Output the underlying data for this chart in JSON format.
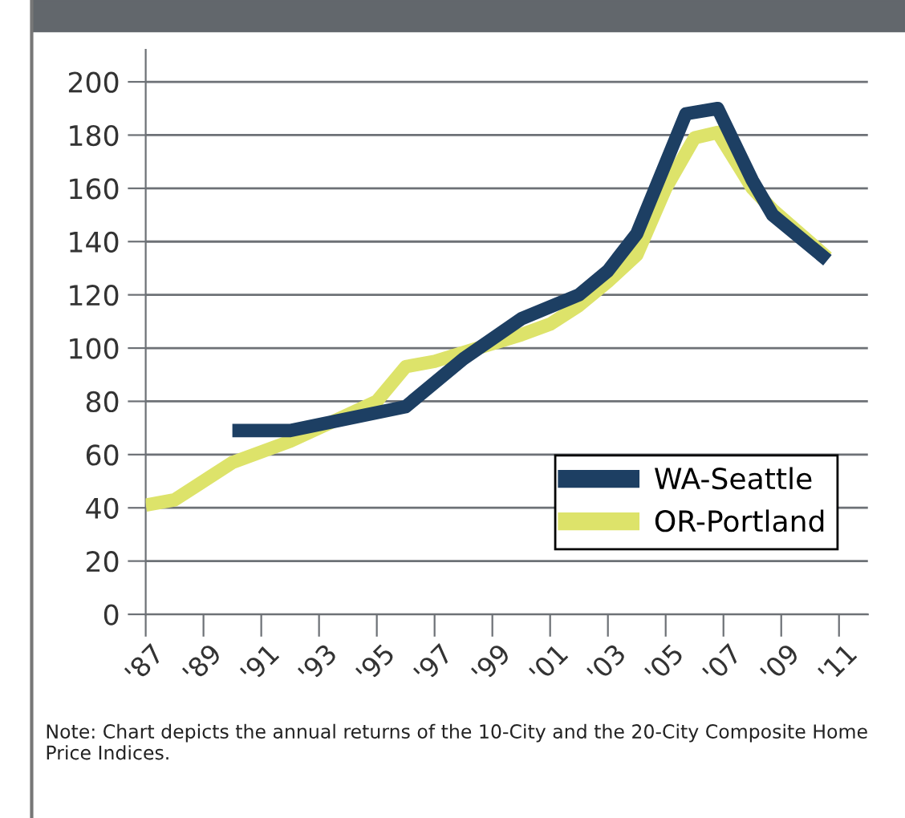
{
  "chart_data": {
    "type": "line",
    "x": [
      1987,
      1988,
      1990,
      1992,
      1995,
      1996,
      1997,
      1998.5,
      2000,
      2001,
      2002,
      2003,
      2004,
      2005,
      2006,
      2006.8,
      2008,
      2008.7,
      2010.6
    ],
    "series": [
      {
        "name": "WA-Seattle",
        "color": "#1d3f63",
        "x": [
          1990,
          1992,
          1996,
          1998,
          2000,
          2002,
          2003,
          2004,
          2005.7,
          2006.8,
          2008,
          2008.7,
          2010.6
        ],
        "values": [
          69,
          69,
          78,
          96,
          111,
          120,
          129,
          143,
          188,
          190,
          163,
          150,
          133
        ]
      },
      {
        "name": "OR-Portland",
        "color": "#dde36a",
        "values": [
          41,
          43,
          57,
          65,
          80,
          93,
          95,
          100,
          105,
          109,
          116,
          125,
          135,
          160,
          179,
          181,
          160,
          152,
          134
        ]
      }
    ],
    "xlim": [
      1987,
      2012
    ],
    "xticks": [
      {
        "value": 1987,
        "label": "'87"
      },
      {
        "value": 1989,
        "label": "'89"
      },
      {
        "value": 1991,
        "label": "'91"
      },
      {
        "value": 1993,
        "label": "'93"
      },
      {
        "value": 1995,
        "label": "'95"
      },
      {
        "value": 1997,
        "label": "'97"
      },
      {
        "value": 1999,
        "label": "'99"
      },
      {
        "value": 2001,
        "label": "'01"
      },
      {
        "value": 2003,
        "label": "'03"
      },
      {
        "value": 2005,
        "label": "'05"
      },
      {
        "value": 2007,
        "label": "'07"
      },
      {
        "value": 2009,
        "label": "'09"
      },
      {
        "value": 2011,
        "label": "'11"
      }
    ],
    "ylim": [
      0,
      212
    ],
    "yticks": [
      0,
      20,
      40,
      60,
      80,
      100,
      120,
      140,
      160,
      180,
      200
    ],
    "grid": "y",
    "legend": "bottom right",
    "marker": "none",
    "line_style": "solid",
    "annotations": [
      "Note: Chart depicts the annual returns of the 10-City and the 20-City Composite Home Price Indices."
    ]
  }
}
